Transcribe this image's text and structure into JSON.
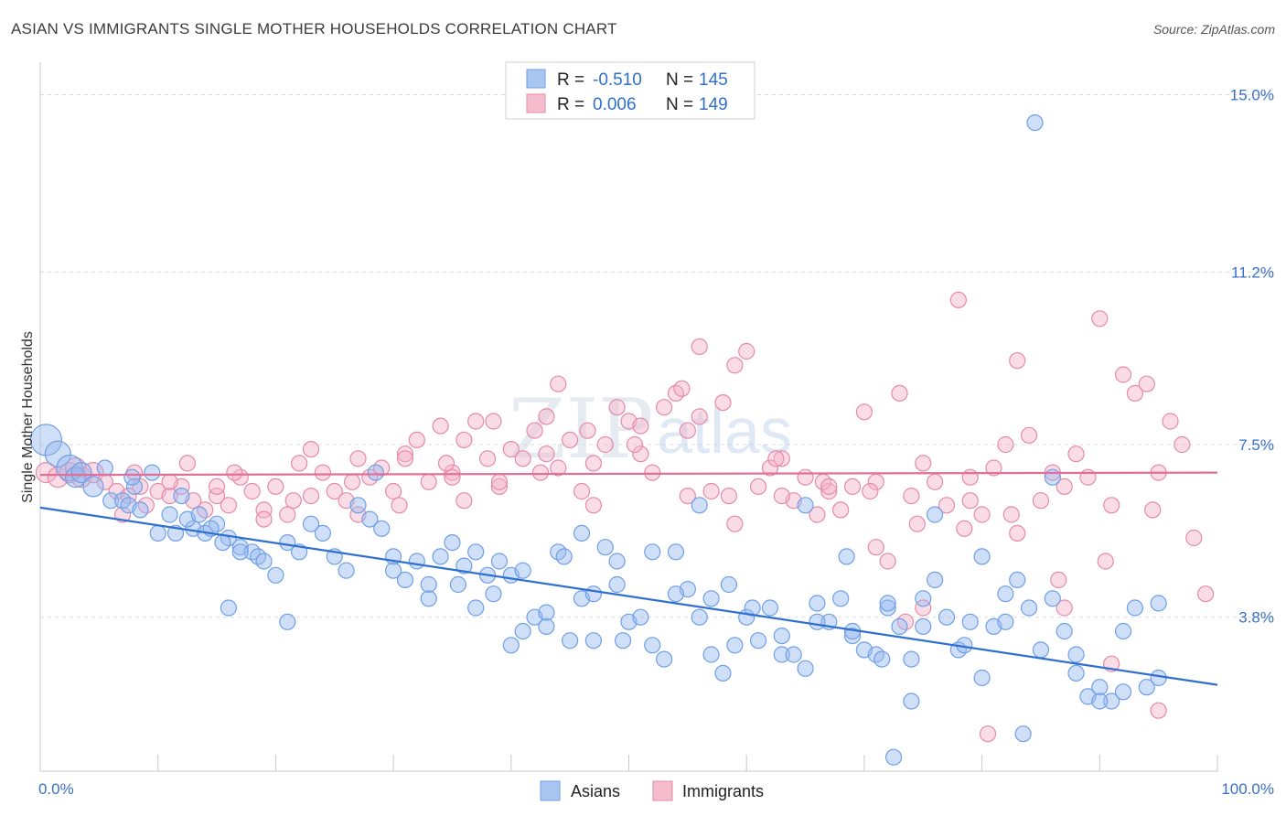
{
  "chart_data": {
    "type": "scatter",
    "title": "ASIAN VS IMMIGRANTS SINGLE MOTHER HOUSEHOLDS CORRELATION CHART",
    "source": "Source: ZipAtlas.com",
    "ylabel": "Single Mother Households",
    "xlabel": "",
    "xlim": [
      0,
      100
    ],
    "ylim": [
      0.5,
      15.5
    ],
    "x_tick_labels": [
      "0.0%",
      "100.0%"
    ],
    "y_ticks": [
      3.8,
      7.5,
      11.2,
      15.0
    ],
    "y_tick_labels": [
      "3.8%",
      "7.5%",
      "11.2%",
      "15.0%"
    ],
    "grid": true,
    "watermark": [
      "ZIP",
      "atlas"
    ],
    "legend_position": "top-center",
    "legend": [
      {
        "name": "Asians",
        "r_label": "R =",
        "r": "-0.510",
        "n_label": "N =",
        "n": "145",
        "color": "#6f9fe6",
        "fill": "#a9c6f0"
      },
      {
        "name": "Immigrants",
        "r_label": "R =",
        "r": " 0.006",
        "n_label": "N =",
        "n": "149",
        "color": "#e68aaa",
        "fill": "#f4bccd"
      }
    ],
    "series": [
      {
        "name": "Asians",
        "color": "#6f9fe6",
        "fill": "rgba(150,185,240,0.45)",
        "trend_color": "#2f6fd0",
        "trend": [
          [
            0,
            6.15
          ],
          [
            100,
            2.35
          ]
        ],
        "points": [
          [
            0.5,
            7.6
          ],
          [
            1.5,
            7.3
          ],
          [
            2.5,
            7.0
          ],
          [
            3,
            6.8
          ],
          [
            3.5,
            6.9
          ],
          [
            4.5,
            6.6
          ],
          [
            6,
            6.3
          ],
          [
            7,
            6.3
          ],
          [
            7.5,
            6.2
          ],
          [
            8,
            6.6
          ],
          [
            8.5,
            6.1
          ],
          [
            5.5,
            7.0
          ],
          [
            7.8,
            6.8
          ],
          [
            9.5,
            6.9
          ],
          [
            11,
            6.0
          ],
          [
            12,
            6.4
          ],
          [
            13,
            5.7
          ],
          [
            14,
            5.6
          ],
          [
            15,
            5.8
          ],
          [
            16,
            5.5
          ],
          [
            17,
            5.3
          ],
          [
            18,
            5.2
          ],
          [
            10,
            5.6
          ],
          [
            11.5,
            5.6
          ],
          [
            12.5,
            5.9
          ],
          [
            13.5,
            6.0
          ],
          [
            14.5,
            5.7
          ],
          [
            15.5,
            5.4
          ],
          [
            17,
            5.2
          ],
          [
            18.5,
            5.1
          ],
          [
            19,
            5.0
          ],
          [
            20,
            4.7
          ],
          [
            21,
            5.4
          ],
          [
            22,
            5.2
          ],
          [
            23,
            5.8
          ],
          [
            24,
            5.6
          ],
          [
            25,
            5.1
          ],
          [
            26,
            4.8
          ],
          [
            27,
            6.2
          ],
          [
            28,
            5.9
          ],
          [
            29,
            5.7
          ],
          [
            30,
            5.1
          ],
          [
            31,
            4.6
          ],
          [
            32,
            5.0
          ],
          [
            33,
            4.2
          ],
          [
            34,
            5.1
          ],
          [
            35,
            5.4
          ],
          [
            36,
            4.9
          ],
          [
            37,
            5.2
          ],
          [
            38,
            4.7
          ],
          [
            39,
            5.0
          ],
          [
            40,
            4.7
          ],
          [
            41,
            4.8
          ],
          [
            42,
            3.8
          ],
          [
            43,
            3.6
          ],
          [
            44,
            5.2
          ],
          [
            45,
            3.3
          ],
          [
            46,
            4.2
          ],
          [
            47,
            4.3
          ],
          [
            48,
            5.3
          ],
          [
            49,
            4.5
          ],
          [
            50,
            3.7
          ],
          [
            51,
            3.8
          ],
          [
            52,
            3.2
          ],
          [
            53,
            2.9
          ],
          [
            54,
            5.2
          ],
          [
            55,
            4.4
          ],
          [
            56,
            3.8
          ],
          [
            57,
            4.2
          ],
          [
            58,
            2.6
          ],
          [
            59,
            3.2
          ],
          [
            60,
            3.8
          ],
          [
            61,
            3.3
          ],
          [
            62,
            4.0
          ],
          [
            63,
            3.0
          ],
          [
            64,
            3.0
          ],
          [
            65,
            2.7
          ],
          [
            66,
            4.1
          ],
          [
            67,
            3.7
          ],
          [
            68,
            4.2
          ],
          [
            69,
            3.4
          ],
          [
            70,
            3.1
          ],
          [
            71,
            3.0
          ],
          [
            72,
            4.0
          ],
          [
            73,
            3.6
          ],
          [
            74,
            2.9
          ],
          [
            75,
            4.2
          ],
          [
            76,
            4.6
          ],
          [
            77,
            3.8
          ],
          [
            78,
            3.1
          ],
          [
            79,
            3.7
          ],
          [
            80,
            5.1
          ],
          [
            81,
            3.6
          ],
          [
            82,
            3.7
          ],
          [
            83,
            4.6
          ],
          [
            84,
            4.0
          ],
          [
            85,
            3.1
          ],
          [
            86,
            4.2
          ],
          [
            87,
            3.5
          ],
          [
            88,
            2.6
          ],
          [
            89,
            2.1
          ],
          [
            90,
            2.3
          ],
          [
            91,
            2.0
          ],
          [
            92,
            2.2
          ],
          [
            93,
            4.0
          ],
          [
            94,
            2.3
          ],
          [
            95,
            2.5
          ],
          [
            16,
            4.0
          ],
          [
            21,
            3.7
          ],
          [
            28.5,
            6.9
          ],
          [
            35.5,
            4.5
          ],
          [
            38.5,
            4.3
          ],
          [
            41,
            3.5
          ],
          [
            44.5,
            5.1
          ],
          [
            47,
            3.3
          ],
          [
            49,
            5.0
          ],
          [
            52,
            5.2
          ],
          [
            56,
            6.2
          ],
          [
            58.5,
            4.5
          ],
          [
            60.5,
            4.0
          ],
          [
            65,
            6.2
          ],
          [
            68.5,
            5.1
          ],
          [
            71.5,
            2.9
          ],
          [
            72.5,
            0.8
          ],
          [
            74,
            2.0
          ],
          [
            76,
            6.0
          ],
          [
            78.5,
            3.2
          ],
          [
            80,
            2.5
          ],
          [
            82,
            4.3
          ],
          [
            83.5,
            1.3
          ],
          [
            86,
            6.8
          ],
          [
            88,
            3.0
          ],
          [
            90,
            2.0
          ],
          [
            92,
            3.5
          ],
          [
            95,
            4.1
          ],
          [
            84.5,
            14.4
          ],
          [
            30,
            4.8
          ],
          [
            33,
            4.5
          ],
          [
            37,
            4.0
          ],
          [
            40,
            3.2
          ],
          [
            43,
            3.9
          ],
          [
            46,
            5.6
          ],
          [
            49.5,
            3.3
          ],
          [
            54,
            4.3
          ],
          [
            57,
            3.0
          ],
          [
            63,
            3.4
          ],
          [
            66,
            3.7
          ],
          [
            69,
            3.5
          ],
          [
            72,
            4.1
          ],
          [
            75,
            3.6
          ]
        ]
      },
      {
        "name": "Immigrants",
        "color": "#e68aaa",
        "fill": "rgba(244,178,200,0.45)",
        "trend_color": "#e0709a",
        "trend": [
          [
            0,
            6.85
          ],
          [
            100,
            6.9
          ]
        ],
        "points": [
          [
            0.5,
            6.9
          ],
          [
            1.5,
            6.8
          ],
          [
            2.5,
            6.9
          ],
          [
            3,
            7.0
          ],
          [
            3.5,
            6.8
          ],
          [
            4.5,
            6.9
          ],
          [
            5.5,
            6.7
          ],
          [
            6.5,
            6.5
          ],
          [
            7.5,
            6.4
          ],
          [
            8.5,
            6.6
          ],
          [
            9,
            6.2
          ],
          [
            10,
            6.5
          ],
          [
            11,
            6.4
          ],
          [
            12,
            6.6
          ],
          [
            13,
            6.3
          ],
          [
            14,
            6.1
          ],
          [
            15,
            6.4
          ],
          [
            16,
            6.2
          ],
          [
            17,
            6.8
          ],
          [
            18,
            6.5
          ],
          [
            19,
            6.1
          ],
          [
            20,
            6.6
          ],
          [
            21,
            6.0
          ],
          [
            22,
            7.1
          ],
          [
            23,
            7.4
          ],
          [
            24,
            6.9
          ],
          [
            25,
            6.5
          ],
          [
            26,
            6.3
          ],
          [
            27,
            7.2
          ],
          [
            28,
            6.8
          ],
          [
            29,
            7.0
          ],
          [
            30,
            6.5
          ],
          [
            31,
            7.3
          ],
          [
            32,
            7.6
          ],
          [
            33,
            6.7
          ],
          [
            34,
            7.9
          ],
          [
            35,
            6.9
          ],
          [
            36,
            7.6
          ],
          [
            37,
            8.0
          ],
          [
            38,
            7.2
          ],
          [
            39,
            6.6
          ],
          [
            40,
            7.4
          ],
          [
            41,
            7.2
          ],
          [
            42,
            7.8
          ],
          [
            43,
            8.1
          ],
          [
            44,
            7.0
          ],
          [
            45,
            7.6
          ],
          [
            46,
            6.5
          ],
          [
            47,
            7.1
          ],
          [
            48,
            7.5
          ],
          [
            49,
            8.3
          ],
          [
            50,
            8.0
          ],
          [
            51,
            7.3
          ],
          [
            52,
            6.9
          ],
          [
            53,
            8.3
          ],
          [
            54,
            8.6
          ],
          [
            55,
            7.8
          ],
          [
            56,
            8.1
          ],
          [
            57,
            6.5
          ],
          [
            58,
            8.4
          ],
          [
            59,
            9.2
          ],
          [
            60,
            9.5
          ],
          [
            61,
            6.6
          ],
          [
            62,
            7.0
          ],
          [
            63,
            7.2
          ],
          [
            64,
            6.3
          ],
          [
            65,
            6.8
          ],
          [
            66,
            6.0
          ],
          [
            67,
            6.5
          ],
          [
            68,
            6.1
          ],
          [
            69,
            6.6
          ],
          [
            70,
            8.2
          ],
          [
            71,
            6.7
          ],
          [
            72,
            5.0
          ],
          [
            73,
            8.6
          ],
          [
            74,
            6.4
          ],
          [
            75,
            7.1
          ],
          [
            76,
            6.7
          ],
          [
            77,
            6.2
          ],
          [
            78,
            10.6
          ],
          [
            79,
            6.8
          ],
          [
            80,
            6.0
          ],
          [
            81,
            7.0
          ],
          [
            82,
            7.5
          ],
          [
            83,
            9.3
          ],
          [
            84,
            7.7
          ],
          [
            85,
            6.3
          ],
          [
            86,
            6.9
          ],
          [
            87,
            6.6
          ],
          [
            88,
            7.3
          ],
          [
            89,
            6.8
          ],
          [
            90,
            10.2
          ],
          [
            91,
            6.2
          ],
          [
            92,
            9.0
          ],
          [
            93,
            8.6
          ],
          [
            94,
            8.8
          ],
          [
            95,
            6.9
          ],
          [
            96,
            8.0
          ],
          [
            97,
            7.5
          ],
          [
            98,
            5.5
          ],
          [
            99,
            4.3
          ],
          [
            8,
            6.9
          ],
          [
            12.5,
            7.1
          ],
          [
            16.5,
            6.9
          ],
          [
            21.5,
            6.3
          ],
          [
            26.5,
            6.7
          ],
          [
            30.5,
            6.2
          ],
          [
            34.5,
            7.1
          ],
          [
            38.5,
            8.0
          ],
          [
            42.5,
            6.9
          ],
          [
            46.5,
            7.8
          ],
          [
            50.5,
            7.5
          ],
          [
            54.5,
            8.7
          ],
          [
            58.5,
            6.4
          ],
          [
            62.5,
            7.2
          ],
          [
            66.5,
            6.7
          ],
          [
            70.5,
            6.5
          ],
          [
            74.5,
            5.8
          ],
          [
            78.5,
            5.7
          ],
          [
            82.5,
            6.0
          ],
          [
            86.5,
            4.6
          ],
          [
            90.5,
            5.0
          ],
          [
            94.5,
            6.1
          ],
          [
            7,
            6.0
          ],
          [
            11,
            6.7
          ],
          [
            15,
            6.6
          ],
          [
            19,
            5.9
          ],
          [
            23,
            6.4
          ],
          [
            27,
            6.0
          ],
          [
            31,
            7.2
          ],
          [
            35,
            6.8
          ],
          [
            39,
            6.7
          ],
          [
            43,
            7.3
          ],
          [
            47,
            6.2
          ],
          [
            51,
            7.9
          ],
          [
            55,
            6.4
          ],
          [
            59,
            5.8
          ],
          [
            63,
            6.4
          ],
          [
            67,
            6.6
          ],
          [
            71,
            5.3
          ],
          [
            75,
            4.0
          ],
          [
            79,
            6.3
          ],
          [
            83,
            5.6
          ],
          [
            87,
            4.0
          ],
          [
            91,
            2.8
          ],
          [
            95,
            1.8
          ],
          [
            80.5,
            1.3
          ],
          [
            73.5,
            3.7
          ],
          [
            36,
            6.3
          ],
          [
            44,
            8.8
          ],
          [
            56,
            9.6
          ]
        ]
      }
    ]
  }
}
